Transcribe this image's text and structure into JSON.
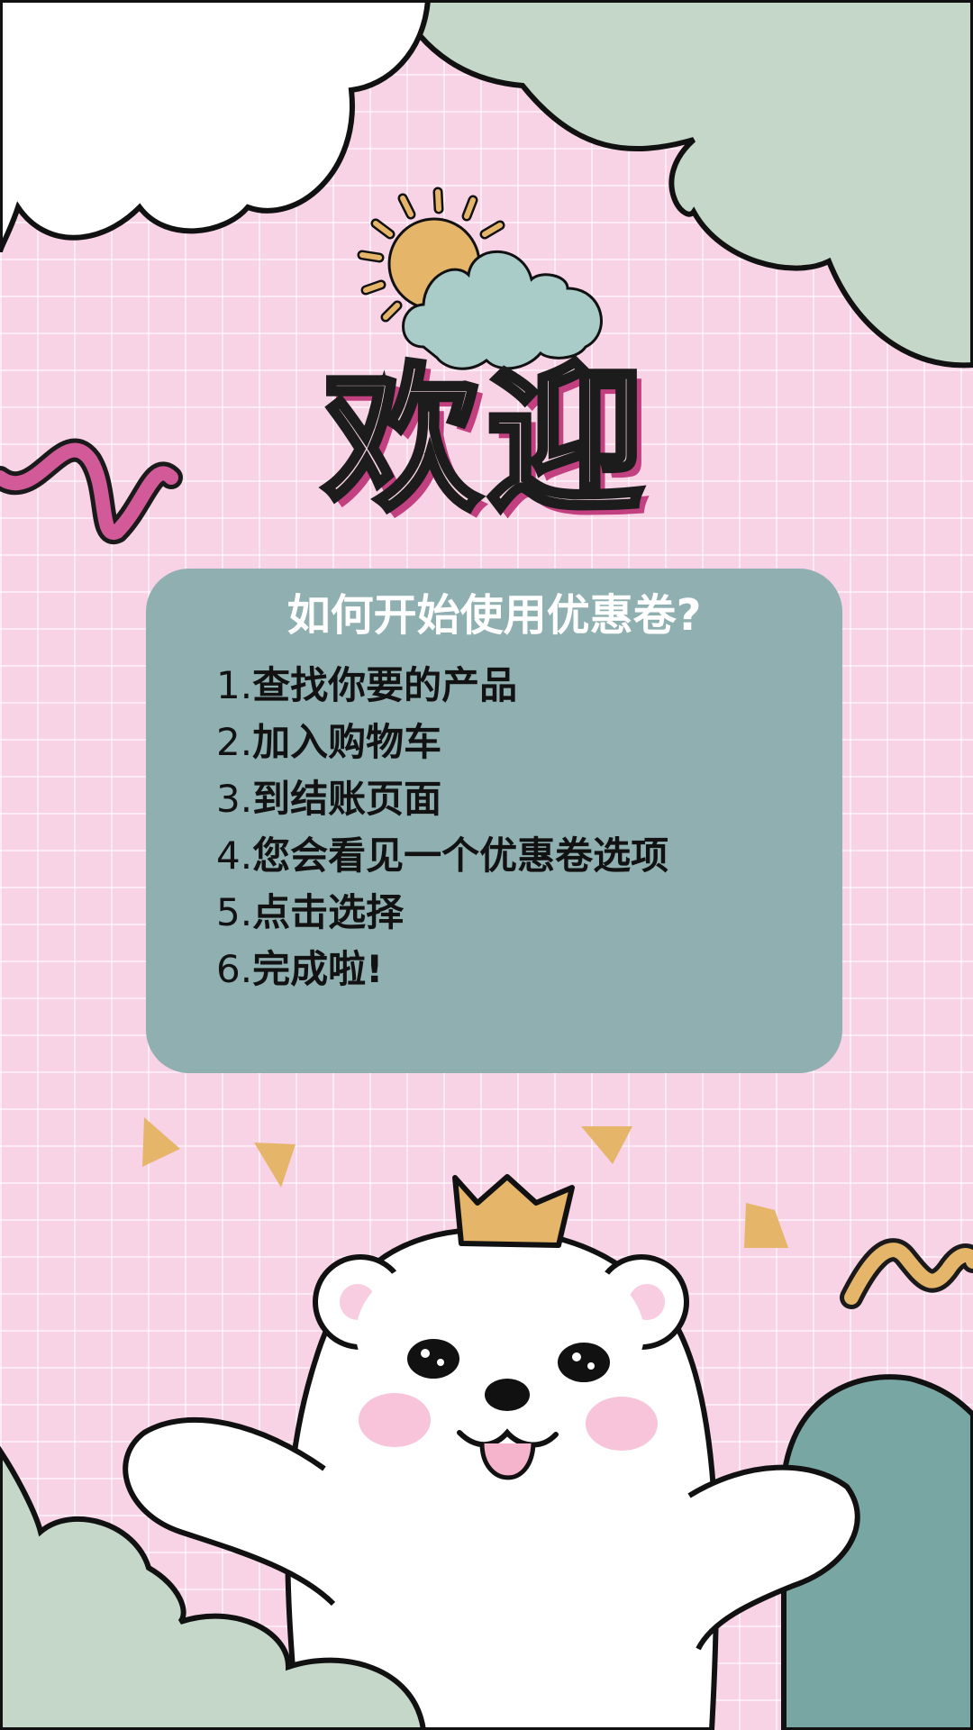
{
  "title": "欢迎",
  "card": {
    "heading": "如何开始使用优惠卷?",
    "steps": [
      {
        "num": "1.",
        "text": "查找你要的产品"
      },
      {
        "num": "2.",
        "text": "加入购物车"
      },
      {
        "num": "3.",
        "text": "到结账页面"
      },
      {
        "num": "4.",
        "text": "您会看见一个优惠卷选项"
      },
      {
        "num": "5.",
        "text": "点击选择"
      },
      {
        "num": "6.",
        "text": "完成啦!"
      }
    ]
  },
  "colors": {
    "background": "#f8d3e6",
    "card": "#90afb1",
    "accent_pink": "#c2407f",
    "accent_orange": "#e5b56a",
    "sage_cloud": "#c5d7c9",
    "teal_cloud": "#78a6a2"
  },
  "icons": [
    "sun-icon",
    "cloud-icon",
    "crown-icon",
    "bear-mascot",
    "squiggle-icon"
  ]
}
